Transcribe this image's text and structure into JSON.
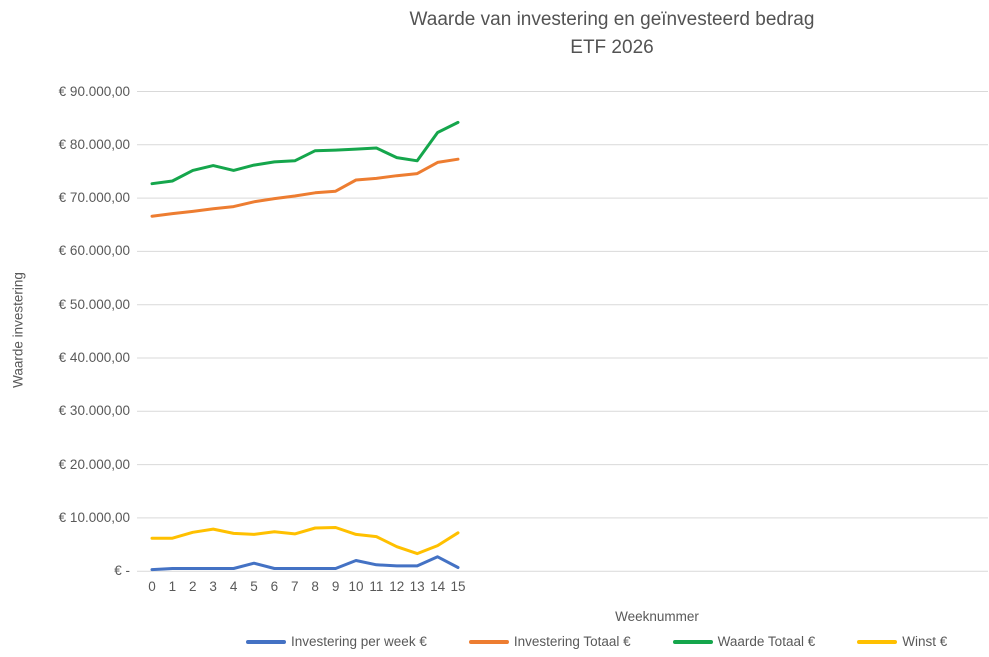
{
  "title": {
    "line1": "Waarde van investering en geïnvesteerd bedrag",
    "line2": "ETF 2026"
  },
  "y_axis": {
    "title": "Waarde investering",
    "tick_labels": [
      "€ 90.000,00",
      "€ 80.000,00",
      "€ 70.000,00",
      "€ 60.000,00",
      "€ 50.000,00",
      "€ 40.000,00",
      "€ 30.000,00",
      "€ 20.000,00",
      "€ 10.000,00",
      "€ -"
    ]
  },
  "x_axis": {
    "title": "Weeknummer",
    "tick_labels": [
      "0",
      "1",
      "2",
      "3",
      "4",
      "5",
      "6",
      "7",
      "8",
      "9",
      "10",
      "11",
      "12",
      "13",
      "14",
      "15"
    ]
  },
  "colors": {
    "gridline": "#D9D9D9",
    "text": "#595959"
  },
  "chart_data": {
    "type": "line",
    "title": "Waarde van investering en geïnvesteerd bedrag ETF 2026",
    "xlabel": "Weeknummer",
    "ylabel": "Waarde investering",
    "ylim": [
      0,
      90000
    ],
    "y_step": 10000,
    "grid": true,
    "legend_position": "bottom",
    "x": [
      0,
      1,
      2,
      3,
      4,
      5,
      6,
      7,
      8,
      9,
      10,
      11,
      12,
      13,
      14,
      15
    ],
    "series": [
      {
        "name": "Investering per week €",
        "color": "#4472C4",
        "values": [
          300,
          500,
          500,
          500,
          500,
          1500,
          500,
          500,
          500,
          500,
          2000,
          1200,
          1000,
          1000,
          2700,
          700
        ]
      },
      {
        "name": "Investering Totaal €",
        "color": "#ED7D31",
        "values": [
          66600,
          67100,
          67500,
          68000,
          68400,
          69300,
          69900,
          70400,
          71000,
          71300,
          73400,
          73700,
          74200,
          74600,
          76700,
          77300
        ]
      },
      {
        "name": "Waarde Totaal €",
        "color": "#15A64C",
        "values": [
          72700,
          73200,
          75200,
          76100,
          75200,
          76200,
          76800,
          77000,
          78900,
          79000,
          79200,
          79400,
          77600,
          77000,
          82300,
          84200
        ]
      },
      {
        "name": "Winst €",
        "color": "#FFC000",
        "values": [
          6200,
          6200,
          7300,
          7900,
          7100,
          6900,
          7400,
          7000,
          8100,
          8200,
          6900,
          6500,
          4600,
          3300,
          4800,
          7200
        ]
      }
    ]
  }
}
